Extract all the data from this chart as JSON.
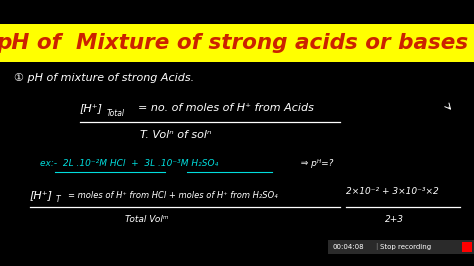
{
  "bg_color": "#000000",
  "title_bg_color": "#ffff00",
  "title_text": "pH of  Mixture of strong acids or bases",
  "title_color": "#cc2200",
  "handwriting_color": "#ffffff",
  "cyan_color": "#00dddd",
  "timer_text": "00:04:08",
  "stop_text": "Stop recording",
  "fig_width": 4.74,
  "fig_height": 2.66,
  "dpi": 100
}
